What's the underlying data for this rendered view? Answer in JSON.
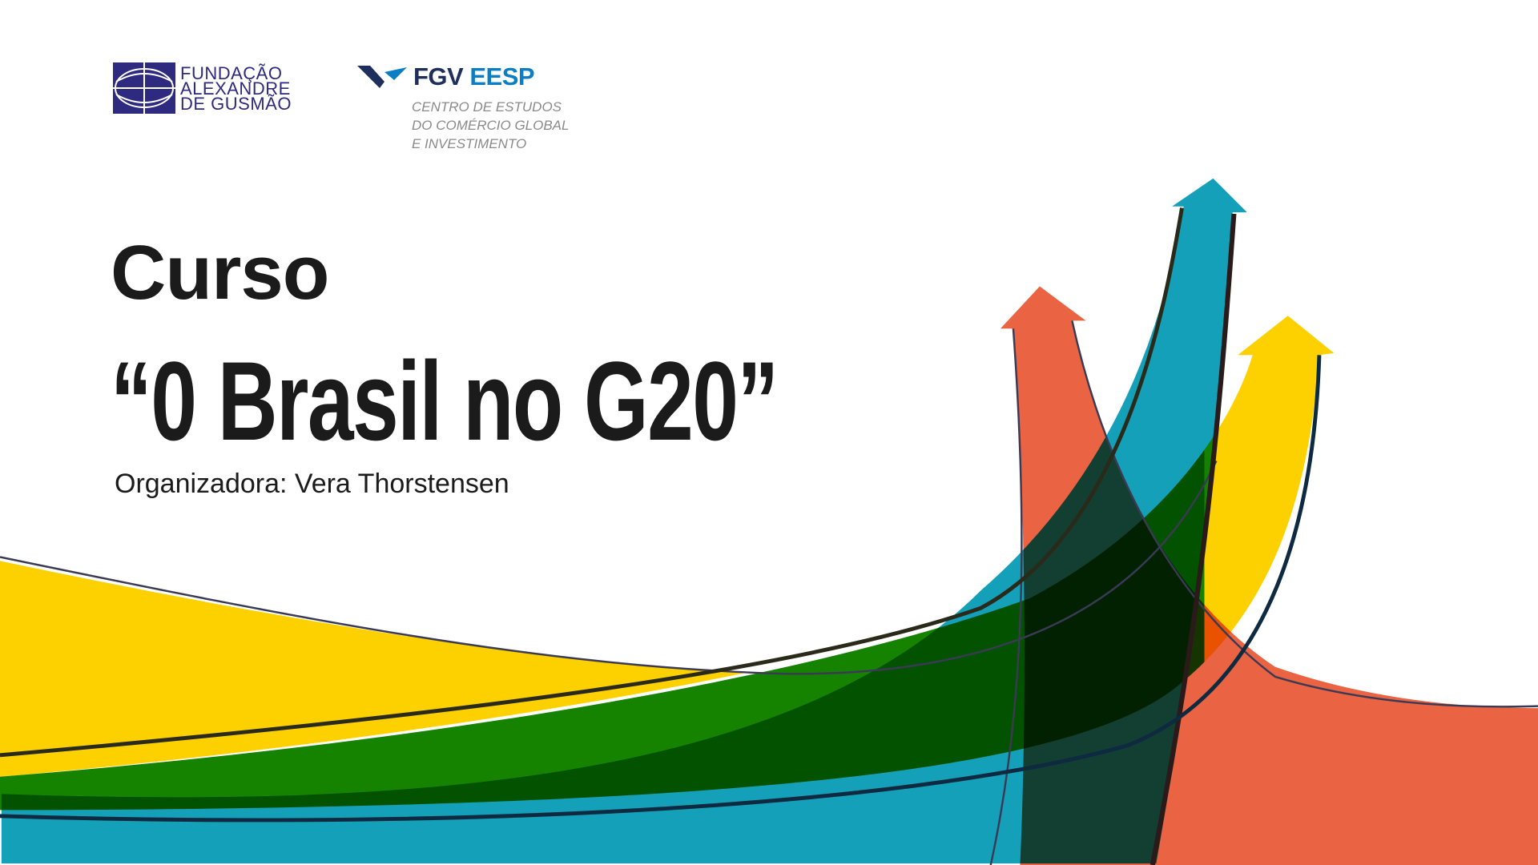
{
  "logos": {
    "fag": {
      "lines": [
        "FUNDAÇÃO",
        "ALEXANDRE",
        "DE GUSMÃO"
      ],
      "color": "#2e2a7f"
    },
    "fgv": {
      "name": "FGV",
      "unit": "EESP",
      "subtitle": [
        "CENTRO DE ESTUDOS",
        "DO COMÉRCIO GLOBAL",
        "E INVESTIMENTO"
      ]
    }
  },
  "course": {
    "label": "Curso",
    "title": "“0 Brasil no G20”",
    "organizer": "Organizadora: Vera Thorstensen"
  },
  "colors": {
    "yellow": "#fdd000",
    "green": "#168300",
    "teal": "#14a0b9",
    "orange": "#ea6444",
    "outline": "#3a3a55"
  }
}
